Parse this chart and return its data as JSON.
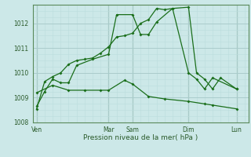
{
  "bg_color": "#cce8e8",
  "grid_major_color": "#aacccc",
  "grid_minor_color": "#bbdddd",
  "line_color": "#1a6e1a",
  "xlabel": "Pression niveau de la mer( hPa )",
  "ylim": [
    1008.0,
    1012.75
  ],
  "yticks": [
    1008,
    1009,
    1010,
    1011,
    1012
  ],
  "xtick_labels": [
    "Ven",
    "Mar",
    "Sam",
    "Dim",
    "Lun"
  ],
  "xtick_positions": [
    0,
    9,
    12,
    19,
    25
  ],
  "vline_positions": [
    0,
    9,
    12,
    19,
    25
  ],
  "xlim": [
    -0.5,
    26.5
  ],
  "series1_x": [
    0,
    1,
    2,
    3,
    4,
    5,
    7,
    9,
    10,
    12,
    13,
    14,
    15,
    17,
    19,
    20,
    21,
    22,
    23,
    25
  ],
  "series1_y": [
    1008.65,
    1009.25,
    1009.75,
    1009.6,
    1009.6,
    1010.3,
    1010.55,
    1010.75,
    1012.35,
    1012.35,
    1011.55,
    1011.55,
    1012.05,
    1012.6,
    1012.65,
    1010.0,
    1009.75,
    1009.35,
    1009.8,
    1009.35
  ],
  "series2_x": [
    0,
    1,
    2,
    3,
    4,
    5,
    6,
    7,
    8,
    9,
    10,
    11,
    12,
    13,
    14,
    15,
    16,
    17,
    19,
    20,
    21,
    22,
    25
  ],
  "series2_y": [
    1008.55,
    1009.65,
    1009.85,
    1010.0,
    1010.35,
    1010.5,
    1010.55,
    1010.6,
    1010.8,
    1011.05,
    1011.45,
    1011.5,
    1011.6,
    1012.0,
    1012.15,
    1012.6,
    1012.55,
    1012.6,
    1010.0,
    1009.75,
    1009.35,
    1009.8,
    1009.35
  ],
  "series3_x": [
    0,
    2,
    4,
    6,
    8,
    9,
    11,
    12,
    14,
    16,
    19,
    21,
    22,
    25
  ],
  "series3_y": [
    1009.2,
    1009.5,
    1009.3,
    1009.3,
    1009.3,
    1009.3,
    1009.7,
    1009.55,
    1009.05,
    1008.95,
    1008.85,
    1008.75,
    1008.7,
    1008.55
  ]
}
